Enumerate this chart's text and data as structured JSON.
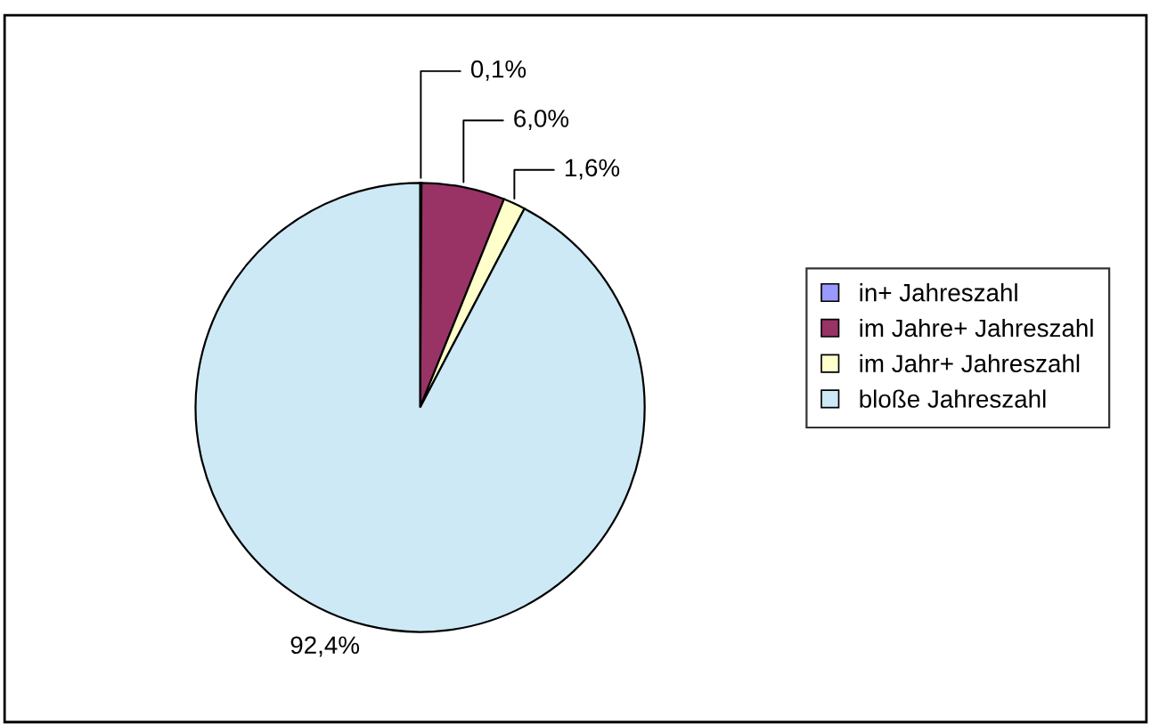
{
  "chart_data": {
    "type": "pie",
    "categories": [
      "in+ Jahreszahl",
      "im Jahre+ Jahreszahl",
      "im Jahr+ Jahreszahl",
      "bloße Jahreszahl"
    ],
    "values": [
      0.1,
      6.0,
      1.6,
      92.4
    ],
    "value_labels": [
      "0,1%",
      "6,0%",
      "1,6%",
      "92,4%"
    ],
    "colors": [
      "#9999ff",
      "#993366",
      "#ffffcc",
      "#cde9f5"
    ],
    "legend": "right"
  }
}
